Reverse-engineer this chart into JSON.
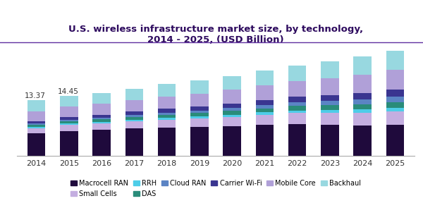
{
  "title": "U.S. wireless infrastructure market size, by technology,\n2014 - 2025, (USD Billion)",
  "years": [
    2014,
    2015,
    2016,
    2017,
    2018,
    2019,
    2020,
    2021,
    2022,
    2023,
    2024,
    2025
  ],
  "annotations": {
    "2014": "13.37",
    "2015": "14.45"
  },
  "stack_order": [
    "Macrocell RAN",
    "Small Cells",
    "RRH",
    "DAS",
    "Cloud RAN",
    "Carrier Wi-Fi",
    "Mobile Core",
    "Backhaul"
  ],
  "segments": {
    "Macrocell RAN": [
      5.5,
      6.0,
      6.3,
      6.6,
      6.8,
      7.0,
      7.2,
      7.5,
      7.7,
      7.5,
      7.4,
      7.5
    ],
    "Small Cells": [
      1.2,
      1.5,
      1.6,
      1.7,
      1.9,
      2.0,
      2.2,
      2.4,
      2.6,
      2.8,
      3.0,
      3.2
    ],
    "RRH": [
      0.25,
      0.28,
      0.32,
      0.38,
      0.42,
      0.48,
      0.52,
      0.58,
      0.62,
      0.7,
      0.78,
      0.88
    ],
    "DAS": [
      0.55,
      0.6,
      0.65,
      0.72,
      0.78,
      0.85,
      0.92,
      1.0,
      1.08,
      1.18,
      1.28,
      1.4
    ],
    "Cloud RAN": [
      0.3,
      0.35,
      0.4,
      0.48,
      0.55,
      0.62,
      0.7,
      0.8,
      0.92,
      1.05,
      1.18,
      1.32
    ],
    "Carrier Wi-Fi": [
      0.55,
      0.6,
      0.68,
      0.78,
      0.88,
      0.98,
      1.08,
      1.18,
      1.3,
      1.42,
      1.55,
      1.7
    ],
    "Mobile Core": [
      2.3,
      2.5,
      2.65,
      2.78,
      2.95,
      3.1,
      3.3,
      3.55,
      3.8,
      4.1,
      4.4,
      4.7
    ],
    "Backhaul": [
      2.72,
      2.57,
      2.6,
      2.75,
      2.97,
      3.12,
      3.31,
      3.54,
      3.76,
      4.05,
      4.32,
      4.57
    ]
  },
  "colors": {
    "Macrocell RAN": "#1f0a3c",
    "Small Cells": "#c4aee0",
    "RRH": "#4ecde8",
    "DAS": "#2a8c7a",
    "Cloud RAN": "#5b84c4",
    "Carrier Wi-Fi": "#3a3590",
    "Mobile Core": "#b0a0d8",
    "Backhaul": "#98d8e0"
  },
  "legend_order": [
    "Macrocell RAN",
    "Small Cells",
    "RRH",
    "DAS",
    "Cloud RAN",
    "Carrier Wi-Fi",
    "Mobile Core",
    "Backhaul"
  ],
  "title_color": "#2d0a5e",
  "bar_width": 0.55,
  "ylim": [
    0,
    26
  ],
  "figsize": [
    6.0,
    2.95
  ],
  "dpi": 100,
  "top_line_color": "#6030a0"
}
